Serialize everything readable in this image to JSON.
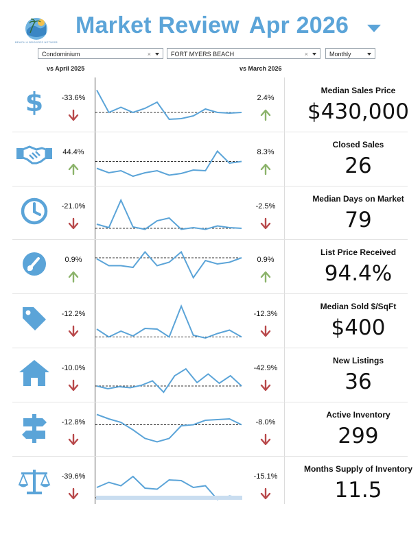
{
  "header": {
    "title": "Market Review",
    "date": "Apr 2026",
    "logo_caption": "BEACH & BROKERS NETWORK REALTORS",
    "brand_color": "#5ba4d8"
  },
  "filters": {
    "property_type": "Condominium",
    "area": "FORT MYERS BEACH",
    "period": "Monthly"
  },
  "column_labels": {
    "year_compare": "vs April 2025",
    "month_compare": "vs March 2026"
  },
  "colors": {
    "up": "#8bb36a",
    "down": "#b8484a",
    "line": "#5ba4d8",
    "baseline": "#333333"
  },
  "metrics": [
    {
      "title": "Median Sales Price",
      "value": "$430,000",
      "icon": "dollar-icon",
      "yoy": "-33.6%",
      "yoy_dir": "down",
      "mom": "2.4%",
      "mom_dir": "up",
      "series": [
        0.95,
        0.3,
        0.45,
        0.3,
        0.42,
        0.6,
        0.1,
        0.12,
        0.2,
        0.4,
        0.3,
        0.28,
        0.3
      ],
      "baseline": 0.3
    },
    {
      "title": "Closed Sales",
      "value": "26",
      "icon": "handshake-icon",
      "yoy": "44.4%",
      "yoy_dir": "up",
      "mom": "8.3%",
      "mom_dir": "up",
      "series": [
        0.25,
        0.12,
        0.18,
        0.02,
        0.12,
        0.18,
        0.05,
        0.1,
        0.2,
        0.18,
        0.75,
        0.4,
        0.45
      ],
      "baseline": 0.45
    },
    {
      "title": "Median Days on Market",
      "value": "79",
      "icon": "clock-icon",
      "yoy": "-21.0%",
      "yoy_dir": "down",
      "mom": "-2.5%",
      "mom_dir": "down",
      "series": [
        0.2,
        0.1,
        0.9,
        0.12,
        0.05,
        0.3,
        0.38,
        0.05,
        0.1,
        0.05,
        0.15,
        0.1,
        0.08
      ],
      "baseline": 0.08
    },
    {
      "title": "List Price Received",
      "value": "94.4%",
      "icon": "gauge-icon",
      "yoy": "0.9%",
      "yoy_dir": "up",
      "mom": "0.9%",
      "mom_dir": "up",
      "series": [
        0.75,
        0.55,
        0.55,
        0.5,
        0.95,
        0.55,
        0.65,
        0.95,
        0.2,
        0.7,
        0.6,
        0.65,
        0.78
      ],
      "baseline": 0.78
    },
    {
      "title": "Median Sold $/SqFt",
      "value": "$400",
      "icon": "tag-icon",
      "yoy": "-12.2%",
      "yoy_dir": "down",
      "mom": "-12.3%",
      "mom_dir": "down",
      "series": [
        0.28,
        0.05,
        0.22,
        0.08,
        0.3,
        0.28,
        0.05,
        0.95,
        0.1,
        0.02,
        0.15,
        0.25,
        0.05
      ],
      "baseline": 0.05
    },
    {
      "title": "New Listings",
      "value": "36",
      "icon": "house-icon",
      "yoy": "-10.0%",
      "yoy_dir": "down",
      "mom": "-42.9%",
      "mom_dir": "down",
      "series": [
        0.2,
        0.12,
        0.18,
        0.15,
        0.22,
        0.35,
        0.02,
        0.5,
        0.7,
        0.3,
        0.55,
        0.28,
        0.5,
        0.2
      ],
      "baseline": 0.2
    },
    {
      "title": "Active Inventory",
      "value": "299",
      "icon": "signpost-icon",
      "yoy": "-12.8%",
      "yoy_dir": "down",
      "mom": "-8.0%",
      "mom_dir": "down",
      "series": [
        0.95,
        0.82,
        0.72,
        0.5,
        0.25,
        0.15,
        0.25,
        0.62,
        0.65,
        0.78,
        0.8,
        0.82,
        0.65
      ],
      "baseline": 0.65
    },
    {
      "title": "Months Supply of Inventory",
      "value": "11.5",
      "icon": "scales-icon",
      "yoy": "-39.6%",
      "yoy_dir": "down",
      "mom": "-15.1%",
      "mom_dir": "down",
      "series": [
        0.4,
        0.55,
        0.45,
        0.72,
        0.38,
        0.35,
        0.62,
        0.6,
        0.4,
        0.45,
        0.05,
        0.15,
        0.1
      ],
      "baseline": 0.1
    }
  ]
}
